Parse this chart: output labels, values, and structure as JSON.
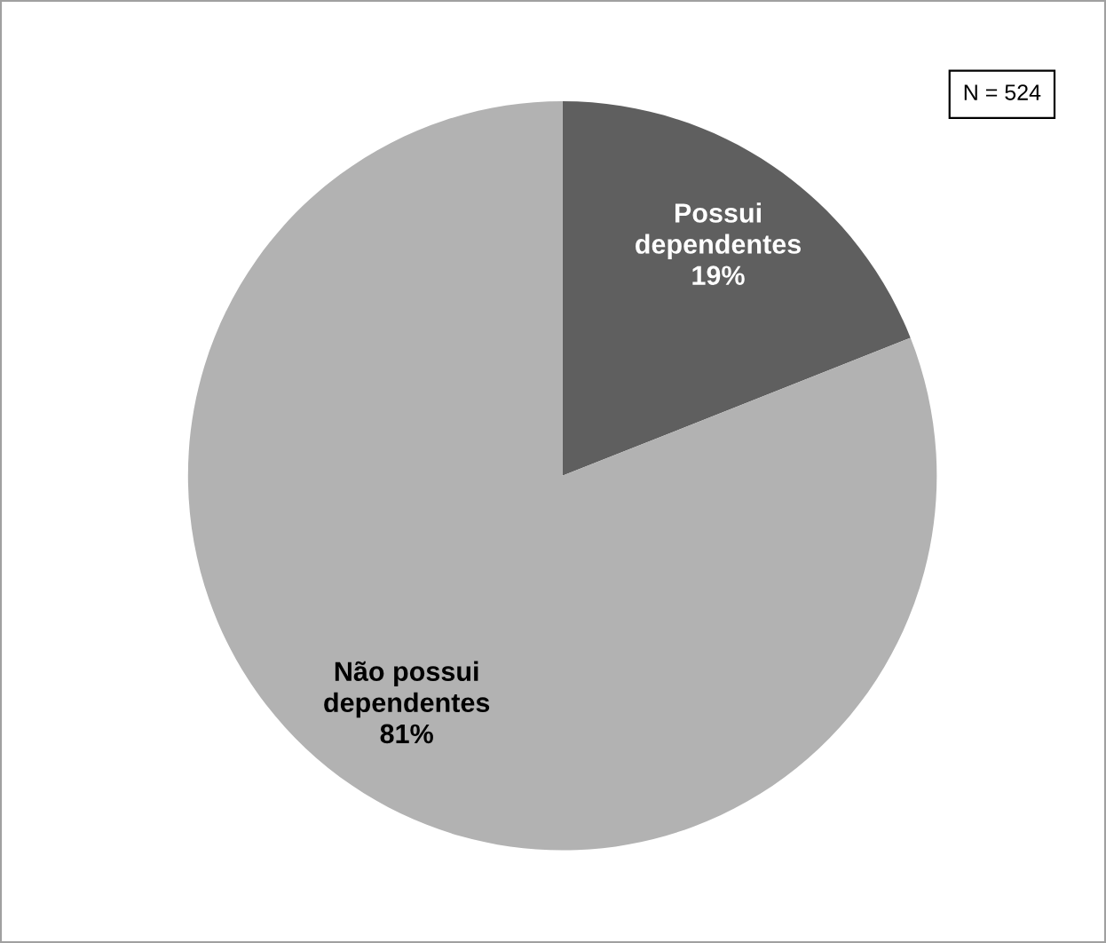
{
  "chart_data": {
    "type": "pie",
    "categories": [
      "Possui dependentes",
      "Não possui dependentes"
    ],
    "values": [
      19,
      81
    ],
    "colors": [
      "#5f5f5f",
      "#b2b2b2"
    ],
    "value_labels": [
      "19%",
      "81%"
    ],
    "legend": false,
    "annotations": [
      "N = 524"
    ]
  }
}
